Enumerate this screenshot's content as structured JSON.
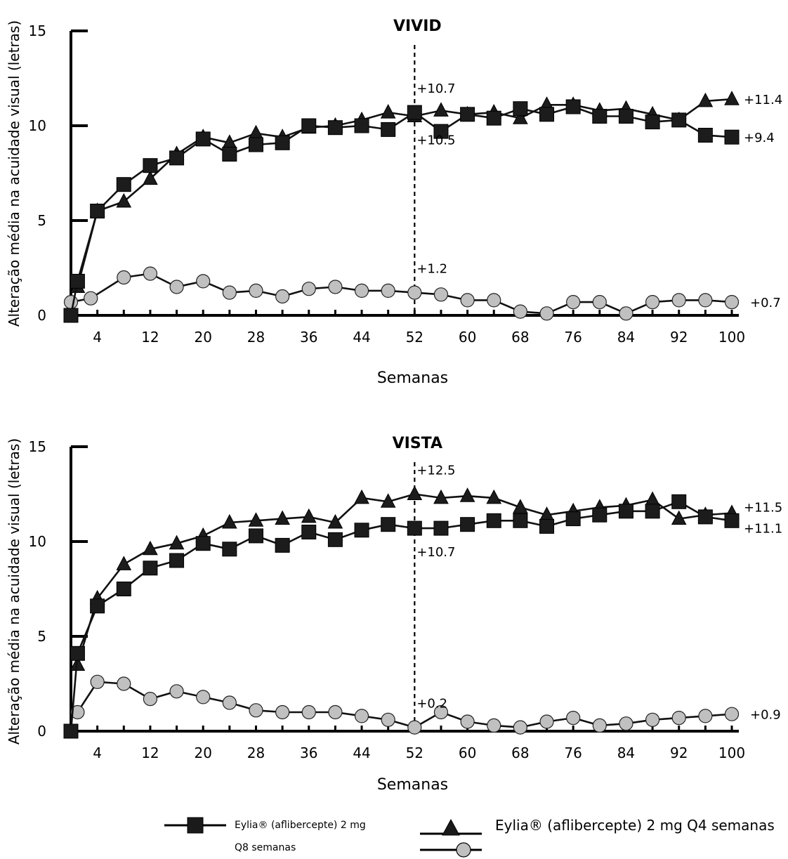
{
  "chart_data": [
    {
      "type": "line",
      "title": "VIVID",
      "xlabel": "Semanas",
      "ylabel": "Alteração média na acuidade visual (letras)",
      "xlim": [
        0,
        100
      ],
      "ylim": [
        0,
        15
      ],
      "xticks": [
        "4",
        "12",
        "20",
        "28",
        "36",
        "44",
        "52",
        "60",
        "68",
        "76",
        "84",
        "92",
        "100"
      ],
      "yticks": [
        "0",
        "5",
        "10",
        "15"
      ],
      "reference_line_x": 52,
      "series": [
        {
          "marker": "square",
          "x": [
            0,
            1,
            4,
            8,
            12,
            16,
            20,
            24,
            28,
            32,
            36,
            40,
            44,
            48,
            52,
            56,
            60,
            64,
            68,
            72,
            76,
            80,
            84,
            88,
            92,
            96,
            100
          ],
          "y": [
            0,
            1.8,
            5.5,
            6.9,
            7.9,
            8.3,
            9.3,
            8.5,
            9.0,
            9.1,
            10.0,
            9.9,
            10.0,
            9.8,
            10.7,
            9.7,
            10.6,
            10.4,
            10.9,
            10.6,
            11.0,
            10.5,
            10.5,
            10.2,
            10.3,
            9.5,
            9.4
          ]
        },
        {
          "marker": "triangle",
          "x": [
            1,
            4,
            8,
            12,
            16,
            20,
            24,
            28,
            32,
            36,
            40,
            44,
            48,
            52,
            56,
            60,
            64,
            68,
            72,
            76,
            80,
            84,
            88,
            92,
            96,
            100
          ],
          "y": [
            1.5,
            5.5,
            6.0,
            7.2,
            8.5,
            9.4,
            9.1,
            9.6,
            9.4,
            9.9,
            10.0,
            10.3,
            10.7,
            10.5,
            10.8,
            10.6,
            10.7,
            10.4,
            11.1,
            11.1,
            10.8,
            10.9,
            10.6,
            10.3,
            11.3,
            11.4
          ]
        },
        {
          "marker": "circle",
          "x": [
            0,
            3,
            8,
            12,
            16,
            20,
            24,
            28,
            32,
            36,
            40,
            44,
            48,
            52,
            56,
            60,
            64,
            68,
            72,
            76,
            80,
            84,
            88,
            92,
            96,
            100
          ],
          "y": [
            0.7,
            0.9,
            2.0,
            2.2,
            1.5,
            1.8,
            1.2,
            1.3,
            1.0,
            1.4,
            1.5,
            1.3,
            1.3,
            1.2,
            1.1,
            0.8,
            0.8,
            0.2,
            0.1,
            0.7,
            0.7,
            0.1,
            0.7,
            0.8,
            0.8,
            0.7
          ]
        }
      ],
      "annotations": {
        "ref_top": "+10.7",
        "ref_mid": "+10.5",
        "ref_low": "+1.2",
        "end_1": "+11.4",
        "end_2": "+9.4",
        "end_3": "+0.7"
      }
    },
    {
      "type": "line",
      "title": "VISTA",
      "xlabel": "Semanas",
      "ylabel": "Alteração média na acuidade visual (letras)",
      "xlim": [
        0,
        100
      ],
      "ylim": [
        0,
        15
      ],
      "xticks": [
        "4",
        "12",
        "20",
        "28",
        "36",
        "44",
        "52",
        "60",
        "68",
        "76",
        "84",
        "92",
        "100"
      ],
      "yticks": [
        "0",
        "5",
        "10",
        "15"
      ],
      "reference_line_x": 52,
      "series": [
        {
          "marker": "square",
          "x": [
            0,
            1,
            4,
            8,
            12,
            16,
            20,
            24,
            28,
            32,
            36,
            40,
            44,
            48,
            52,
            56,
            60,
            64,
            68,
            72,
            76,
            80,
            84,
            88,
            92,
            96,
            100
          ],
          "y": [
            0,
            4.1,
            6.6,
            7.5,
            8.6,
            9.0,
            9.9,
            9.6,
            10.3,
            9.8,
            10.5,
            10.1,
            10.6,
            10.9,
            10.7,
            10.7,
            10.9,
            11.1,
            11.1,
            10.8,
            11.2,
            11.4,
            11.6,
            11.6,
            12.1,
            11.3,
            11.1
          ]
        },
        {
          "marker": "triangle",
          "x": [
            1,
            4,
            8,
            12,
            16,
            20,
            24,
            28,
            32,
            36,
            40,
            44,
            48,
            52,
            56,
            60,
            64,
            68,
            72,
            76,
            80,
            84,
            88,
            92,
            96,
            100
          ],
          "y": [
            3.5,
            7.0,
            8.8,
            9.6,
            9.9,
            10.3,
            11.0,
            11.1,
            11.2,
            11.3,
            11.0,
            12.3,
            12.1,
            12.5,
            12.3,
            12.4,
            12.3,
            11.8,
            11.4,
            11.6,
            11.8,
            11.9,
            12.2,
            11.2,
            11.4,
            11.5
          ]
        },
        {
          "marker": "circle",
          "x": [
            1,
            4,
            8,
            12,
            16,
            20,
            24,
            28,
            32,
            36,
            40,
            44,
            48,
            52,
            56,
            60,
            64,
            68,
            72,
            76,
            80,
            84,
            88,
            92,
            96,
            100
          ],
          "y": [
            1.0,
            2.6,
            2.5,
            1.7,
            2.1,
            1.8,
            1.5,
            1.1,
            1.0,
            1.0,
            1.0,
            0.8,
            0.6,
            0.2,
            1.0,
            0.5,
            0.3,
            0.2,
            0.5,
            0.7,
            0.3,
            0.4,
            0.6,
            0.7,
            0.8,
            0.9
          ]
        }
      ],
      "annotations": {
        "ref_top": "+12.5",
        "ref_mid": "+10.7",
        "ref_low": "+0.2",
        "end_1": "+11.5",
        "end_2": "+11.1",
        "end_3": "+0.9"
      }
    }
  ],
  "legend": {
    "item_1": "Eylia® (aflibercepte) 2 mg",
    "item_1_line2": "Q8 semanas",
    "item_2": "Eylia® (aflibercepte) 2 mg Q4 semanas"
  }
}
